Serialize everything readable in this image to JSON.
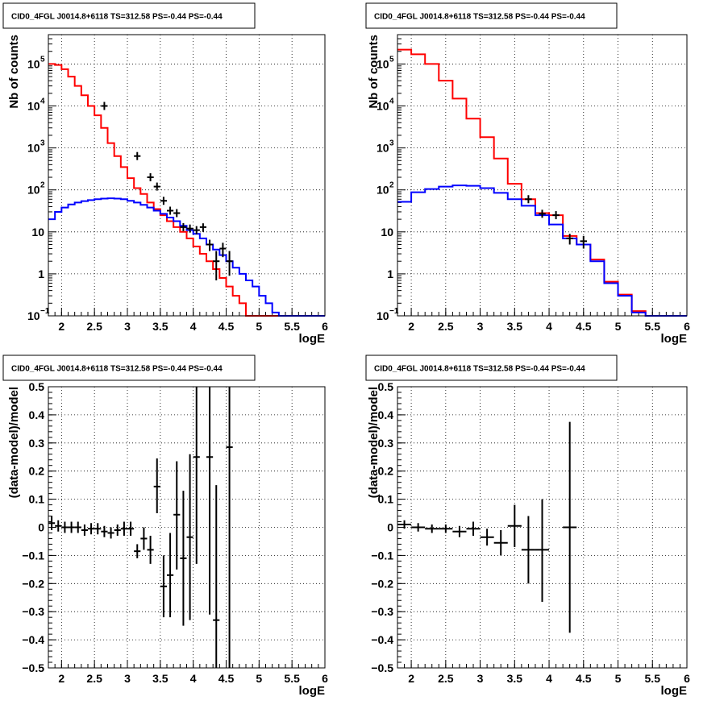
{
  "chart_data": [
    {
      "type": "line",
      "title": "CID0_4FGL J0014.8+6118 TS=312.58 PS=-0.44 PS=-0.44",
      "xlabel": "logE",
      "ylabel": "Nb of counts",
      "xlim": [
        1.8,
        6.0
      ],
      "ylim": [
        0.1,
        500000
      ],
      "yscale": "log",
      "grid": true,
      "xticks": [
        "2",
        "2.5",
        "3",
        "3.5",
        "4",
        "4.5",
        "5",
        "5.5",
        "6"
      ],
      "yticks": [
        {
          "v": 0.1,
          "base": "10",
          "exp": "−1"
        },
        {
          "v": 1,
          "label": "1"
        },
        {
          "v": 10,
          "label": "10"
        },
        {
          "v": 100,
          "base": "10",
          "exp": "2"
        },
        {
          "v": 1000,
          "base": "10",
          "exp": "3"
        },
        {
          "v": 10000,
          "base": "10",
          "exp": "4"
        },
        {
          "v": 100000,
          "base": "10",
          "exp": "5"
        }
      ],
      "bin_edges": [
        1.8,
        1.9,
        2.0,
        2.1,
        2.2,
        2.3,
        2.4,
        2.5,
        2.6,
        2.7,
        2.8,
        2.9,
        3.0,
        3.1,
        3.2,
        3.3,
        3.4,
        3.5,
        3.6,
        3.7,
        3.8,
        3.9,
        4.0,
        4.1,
        4.2,
        4.3,
        4.4,
        4.5,
        4.6,
        4.7,
        4.8,
        4.9,
        5.0,
        5.1,
        5.2,
        5.3,
        5.4,
        5.5,
        5.6,
        5.7,
        5.8,
        5.9,
        6.0
      ],
      "series": [
        {
          "color": "#ff0000",
          "style": "step",
          "values": [
            100000,
            95000,
            75000,
            50000,
            30000,
            18000,
            10000,
            6000,
            3000,
            1300,
            640,
            350,
            190,
            110,
            80,
            50,
            35,
            25,
            18,
            13,
            10,
            7,
            4.5,
            3,
            2,
            1.3,
            0.8,
            0.5,
            0.3,
            0.2,
            0.1,
            0.1,
            0.1,
            0.1,
            0.1,
            0.1,
            0.1,
            0.1,
            0.1,
            0.1,
            0.1,
            0.1
          ]
        },
        {
          "color": "#0000ff",
          "style": "step",
          "values": [
            20,
            30,
            38,
            45,
            50,
            54,
            57,
            60,
            62,
            63,
            62,
            60,
            55,
            50,
            44,
            38,
            32,
            27,
            22,
            18,
            14,
            11,
            9,
            7,
            5,
            3.8,
            2.8,
            2,
            1.4,
            1,
            0.7,
            0.5,
            0.3,
            0.2,
            0.12,
            0.1,
            0.1,
            0.1,
            0.1,
            0.1,
            0.1,
            0.1
          ]
        }
      ],
      "points": [
        {
          "x": 2.65,
          "y": 10000
        },
        {
          "x": 3.15,
          "y": 640
        },
        {
          "x": 3.35,
          "y": 200
        },
        {
          "x": 3.45,
          "y": 120
        },
        {
          "x": 3.55,
          "y": 55
        },
        {
          "x": 3.65,
          "y": 32
        },
        {
          "x": 3.75,
          "y": 28
        },
        {
          "x": 3.85,
          "y": 13,
          "ylo": 11,
          "yhi": 15
        },
        {
          "x": 3.95,
          "y": 12,
          "ylo": 10,
          "yhi": 14
        },
        {
          "x": 4.05,
          "y": 11,
          "ylo": 9,
          "yhi": 14
        },
        {
          "x": 4.15,
          "y": 13,
          "ylo": 10,
          "yhi": 16
        },
        {
          "x": 4.25,
          "y": 5,
          "ylo": 3.5,
          "yhi": 6.5
        },
        {
          "x": 4.35,
          "y": 2,
          "ylo": 0.7,
          "yhi": 3.5
        },
        {
          "x": 4.45,
          "y": 4,
          "ylo": 2.5,
          "yhi": 5.5
        },
        {
          "x": 4.55,
          "y": 2,
          "ylo": 0.9,
          "yhi": 3.5
        }
      ]
    },
    {
      "type": "line",
      "title": "CID0_4FGL J0014.8+6118 TS=312.58 PS=-0.44 PS=-0.44",
      "xlabel": "logE",
      "ylabel": "Nb of counts",
      "xlim": [
        1.8,
        6.0
      ],
      "ylim": [
        0.1,
        500000
      ],
      "yscale": "log",
      "grid": true,
      "xticks": [
        "2",
        "2.5",
        "3",
        "3.5",
        "4",
        "4.5",
        "5",
        "5.5",
        "6"
      ],
      "yticks": [
        {
          "v": 0.1,
          "base": "10",
          "exp": "−1"
        },
        {
          "v": 1,
          "label": "1"
        },
        {
          "v": 10,
          "label": "10"
        },
        {
          "v": 100,
          "base": "10",
          "exp": "2"
        },
        {
          "v": 1000,
          "base": "10",
          "exp": "3"
        },
        {
          "v": 10000,
          "base": "10",
          "exp": "4"
        },
        {
          "v": 100000,
          "base": "10",
          "exp": "5"
        }
      ],
      "bin_edges": [
        1.8,
        2.0,
        2.2,
        2.4,
        2.6,
        2.8,
        3.0,
        3.2,
        3.4,
        3.6,
        3.8,
        4.0,
        4.2,
        4.4,
        4.6,
        4.8,
        5.0,
        5.2,
        5.4,
        5.6,
        5.8,
        6.0
      ],
      "series": [
        {
          "color": "#ff0000",
          "style": "step",
          "values": [
            220000,
            170000,
            100000,
            40000,
            15000,
            5000,
            1800,
            560,
            140,
            60,
            28,
            25,
            8,
            5,
            2.2,
            0.65,
            0.32,
            0.13,
            0.1,
            0.1,
            0.1
          ]
        },
        {
          "color": "#0000ff",
          "style": "step",
          "values": [
            52,
            88,
            105,
            120,
            128,
            125,
            110,
            85,
            60,
            42,
            25,
            15,
            7,
            5,
            2,
            0.6,
            0.3,
            0.12,
            0.1,
            0.1,
            0.1
          ]
        }
      ],
      "points": [
        {
          "x": 3.7,
          "y": 60
        },
        {
          "x": 3.9,
          "y": 27
        },
        {
          "x": 4.1,
          "y": 25,
          "ylo": 20,
          "yhi": 30
        },
        {
          "x": 4.3,
          "y": 7,
          "ylo": 5,
          "yhi": 9
        },
        {
          "x": 4.5,
          "y": 6,
          "ylo": 4,
          "yhi": 8
        }
      ]
    },
    {
      "type": "scatter",
      "title": "CID0_4FGL J0014.8+6118 TS=312.58 PS=-0.44 PS=-0.44",
      "xlabel": "logE",
      "ylabel": "(data-model)/model",
      "xlim": [
        1.8,
        6.0
      ],
      "ylim": [
        -0.5,
        0.5
      ],
      "grid": true,
      "xticks": [
        "2",
        "2.5",
        "3",
        "3.5",
        "4",
        "4.5",
        "5",
        "5.5",
        "6"
      ],
      "yticks": [
        "−0.5",
        "−0.4",
        "−0.3",
        "−0.2",
        "−0.1",
        "0",
        "0.1",
        "0.2",
        "0.3",
        "0.4",
        "0.5"
      ],
      "xerr": 0.05,
      "points": [
        {
          "x": 1.85,
          "y": 0.015,
          "ylo": -0.01,
          "yhi": 0.04
        },
        {
          "x": 1.95,
          "y": 0.005,
          "ylo": -0.015,
          "yhi": 0.025
        },
        {
          "x": 2.05,
          "y": 0.0,
          "ylo": -0.02,
          "yhi": 0.02
        },
        {
          "x": 2.15,
          "y": 0.0,
          "ylo": -0.02,
          "yhi": 0.02
        },
        {
          "x": 2.25,
          "y": 0.0,
          "ylo": -0.02,
          "yhi": 0.02
        },
        {
          "x": 2.35,
          "y": -0.01,
          "ylo": -0.03,
          "yhi": 0.01
        },
        {
          "x": 2.45,
          "y": -0.005,
          "ylo": -0.025,
          "yhi": 0.015
        },
        {
          "x": 2.55,
          "y": -0.005,
          "ylo": -0.025,
          "yhi": 0.015
        },
        {
          "x": 2.65,
          "y": -0.015,
          "ylo": -0.035,
          "yhi": 0.005
        },
        {
          "x": 2.75,
          "y": -0.02,
          "ylo": -0.04,
          "yhi": 0.0
        },
        {
          "x": 2.85,
          "y": -0.01,
          "ylo": -0.03,
          "yhi": 0.01
        },
        {
          "x": 2.95,
          "y": -0.005,
          "ylo": -0.03,
          "yhi": 0.02
        },
        {
          "x": 3.05,
          "y": -0.005,
          "ylo": -0.03,
          "yhi": 0.02
        },
        {
          "x": 3.15,
          "y": -0.085,
          "ylo": -0.11,
          "yhi": -0.06
        },
        {
          "x": 3.25,
          "y": -0.04,
          "ylo": -0.08,
          "yhi": 0.0
        },
        {
          "x": 3.35,
          "y": -0.08,
          "ylo": -0.13,
          "yhi": -0.03
        },
        {
          "x": 3.45,
          "y": 0.145,
          "ylo": 0.05,
          "yhi": 0.245
        },
        {
          "x": 3.55,
          "y": -0.21,
          "ylo": -0.32,
          "yhi": -0.1
        },
        {
          "x": 3.65,
          "y": -0.17,
          "ylo": -0.32,
          "yhi": -0.02
        },
        {
          "x": 3.75,
          "y": 0.045,
          "ylo": -0.15,
          "yhi": 0.235
        },
        {
          "x": 3.85,
          "y": -0.11,
          "ylo": -0.35,
          "yhi": 0.13
        },
        {
          "x": 3.95,
          "y": -0.035,
          "ylo": -0.33,
          "yhi": 0.26
        },
        {
          "x": 4.05,
          "y": 0.25,
          "ylo": -0.13,
          "yhi": 0.5
        },
        {
          "x": 4.25,
          "y": 0.25,
          "ylo": -0.31,
          "yhi": 0.5
        },
        {
          "x": 4.35,
          "y": -0.33,
          "ylo": -0.5,
          "yhi": 0.15
        },
        {
          "x": 4.55,
          "y": 0.285,
          "ylo": -0.5,
          "yhi": 0.5
        }
      ]
    },
    {
      "type": "scatter",
      "title": "CID0_4FGL J0014.8+6118 TS=312.58 PS=-0.44 PS=-0.44",
      "xlabel": "logE",
      "ylabel": "(data-model)/model",
      "xlim": [
        1.8,
        6.0
      ],
      "ylim": [
        -0.5,
        0.5
      ],
      "grid": true,
      "xticks": [
        "2",
        "2.5",
        "3",
        "3.5",
        "4",
        "4.5",
        "5",
        "5.5",
        "6"
      ],
      "yticks": [
        "−0.5",
        "−0.4",
        "−0.3",
        "−0.2",
        "−0.1",
        "0",
        "0.1",
        "0.2",
        "0.3",
        "0.4",
        "0.5"
      ],
      "xerr": 0.1,
      "points": [
        {
          "x": 1.9,
          "y": 0.01,
          "ylo": -0.005,
          "yhi": 0.025
        },
        {
          "x": 2.1,
          "y": 0.0,
          "ylo": -0.015,
          "yhi": 0.015
        },
        {
          "x": 2.3,
          "y": -0.005,
          "ylo": -0.02,
          "yhi": 0.01
        },
        {
          "x": 2.5,
          "y": -0.005,
          "ylo": -0.02,
          "yhi": 0.01
        },
        {
          "x": 2.7,
          "y": -0.015,
          "ylo": -0.035,
          "yhi": 0.005
        },
        {
          "x": 2.9,
          "y": -0.005,
          "ylo": -0.03,
          "yhi": 0.02
        },
        {
          "x": 3.1,
          "y": -0.035,
          "ylo": -0.065,
          "yhi": -0.005
        },
        {
          "x": 3.3,
          "y": -0.055,
          "ylo": -0.1,
          "yhi": -0.01
        },
        {
          "x": 3.5,
          "y": 0.005,
          "ylo": -0.07,
          "yhi": 0.08
        },
        {
          "x": 3.7,
          "y": -0.08,
          "ylo": -0.2,
          "yhi": 0.04
        },
        {
          "x": 3.9,
          "y": -0.08,
          "ylo": -0.265,
          "yhi": 0.1
        },
        {
          "x": 4.3,
          "y": 0.0,
          "ylo": -0.375,
          "yhi": 0.375
        }
      ]
    }
  ]
}
